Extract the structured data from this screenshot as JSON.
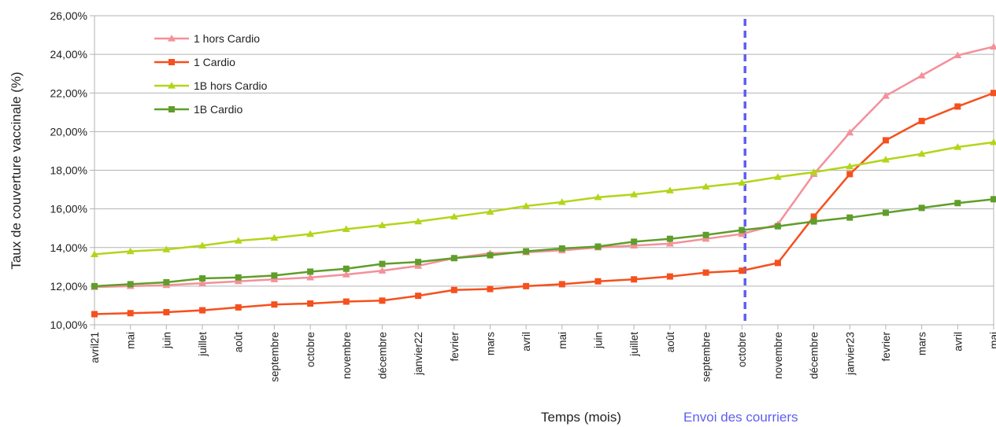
{
  "chart_data": {
    "type": "line",
    "title": "",
    "xlabel": "Temps (mois)",
    "ylabel": "Taux de couverture vaccinale (%)",
    "ylim": [
      10,
      26
    ],
    "y_ticks": [
      10,
      12,
      14,
      16,
      18,
      20,
      22,
      24,
      26
    ],
    "y_tick_labels": [
      "10,00%",
      "12,00%",
      "14,00%",
      "16,00%",
      "18,00%",
      "20,00%",
      "22,00%",
      "24,00%",
      "26,00%"
    ],
    "grid": "horizontal",
    "legend_position": "top-left",
    "categories": [
      "avril21",
      "mai",
      "juin",
      "juillet",
      "août",
      "septembre",
      "octobre",
      "novembre",
      "décembre",
      "janvier22",
      "fevrier",
      "mars",
      "avril",
      "mai",
      "juin",
      "juillet",
      "août",
      "septembre",
      "octobre",
      "novembre",
      "décembre",
      "janvier23",
      "fevrier",
      "mars",
      "avril",
      "mai"
    ],
    "series": [
      {
        "name": "1 hors Cardio",
        "color": "#f4909a",
        "marker": "triangle",
        "values": [
          11.95,
          12.0,
          12.05,
          12.15,
          12.25,
          12.35,
          12.45,
          12.6,
          12.8,
          13.05,
          13.45,
          13.7,
          13.75,
          13.85,
          14.0,
          14.1,
          14.2,
          14.45,
          14.7,
          15.2,
          17.8,
          19.95,
          21.85,
          22.9,
          23.95,
          24.4
        ]
      },
      {
        "name": "1 Cardio",
        "color": "#f5501e",
        "marker": "square",
        "values": [
          10.55,
          10.6,
          10.65,
          10.75,
          10.9,
          11.05,
          11.1,
          11.2,
          11.25,
          11.5,
          11.8,
          11.85,
          12.0,
          12.1,
          12.25,
          12.35,
          12.5,
          12.7,
          12.8,
          13.2,
          15.6,
          17.8,
          19.55,
          20.55,
          21.3,
          22.0
        ]
      },
      {
        "name": "1B hors Cardio",
        "color": "#b2d51a",
        "marker": "triangle",
        "values": [
          13.65,
          13.8,
          13.9,
          14.1,
          14.35,
          14.5,
          14.7,
          14.95,
          15.15,
          15.35,
          15.6,
          15.85,
          16.15,
          16.35,
          16.6,
          16.75,
          16.95,
          17.15,
          17.35,
          17.65,
          17.9,
          18.2,
          18.55,
          18.85,
          19.2,
          19.45
        ]
      },
      {
        "name": "1B Cardio",
        "color": "#5f9e2a",
        "marker": "square",
        "values": [
          12.0,
          12.1,
          12.2,
          12.4,
          12.45,
          12.55,
          12.75,
          12.9,
          13.15,
          13.25,
          13.45,
          13.6,
          13.8,
          13.95,
          14.05,
          14.3,
          14.45,
          14.65,
          14.9,
          15.1,
          15.35,
          15.55,
          15.8,
          16.05,
          16.3,
          16.5
        ]
      }
    ],
    "annotations": [
      {
        "text": "Envoi des courriers",
        "at_category_index": 18,
        "style": "vertical-dashed-line",
        "color": "#5f5ff0"
      }
    ],
    "colors": {
      "grid": "#b3b3b3",
      "axis": "#b3b3b3",
      "text": "#222222"
    }
  }
}
